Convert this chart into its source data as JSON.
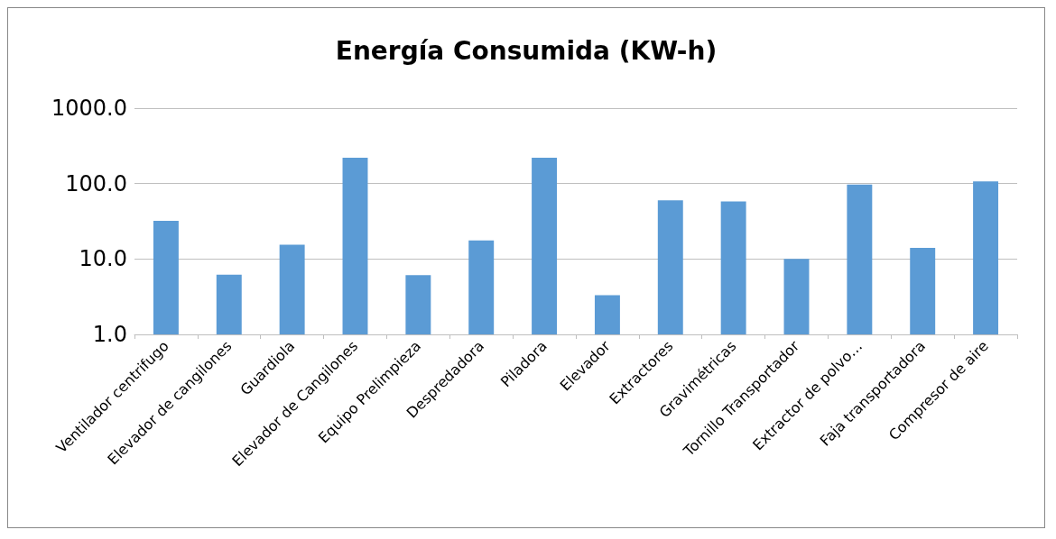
{
  "chart_data": {
    "type": "bar",
    "title": "Energía Consumida (KW-h)",
    "categories": [
      "Ventilador centrifugo",
      "Elevador de cangilones",
      "Guardiola",
      "Elevador de Cangilones",
      "Equipo Prelimpieza",
      "Despredadora",
      "Piladora",
      "Elevador",
      "Extractores",
      "Gravimétricas",
      "Tornillo Transportador",
      "Extractor de polvo…",
      "Faja transportadora",
      "Compresor de aire"
    ],
    "values": [
      32,
      6.2,
      15.5,
      220,
      6.1,
      17.6,
      220,
      3.3,
      60,
      58,
      10,
      97,
      14,
      107
    ],
    "color": "#5b9bd5",
    "log": true,
    "ylim": [
      1,
      1000
    ],
    "yticks": [
      {
        "value": 1,
        "label": "1.0"
      },
      {
        "value": 10,
        "label": "10.0"
      },
      {
        "value": 100,
        "label": "100.0"
      },
      {
        "value": 1000,
        "label": "1000.0"
      }
    ],
    "grid": "y"
  }
}
